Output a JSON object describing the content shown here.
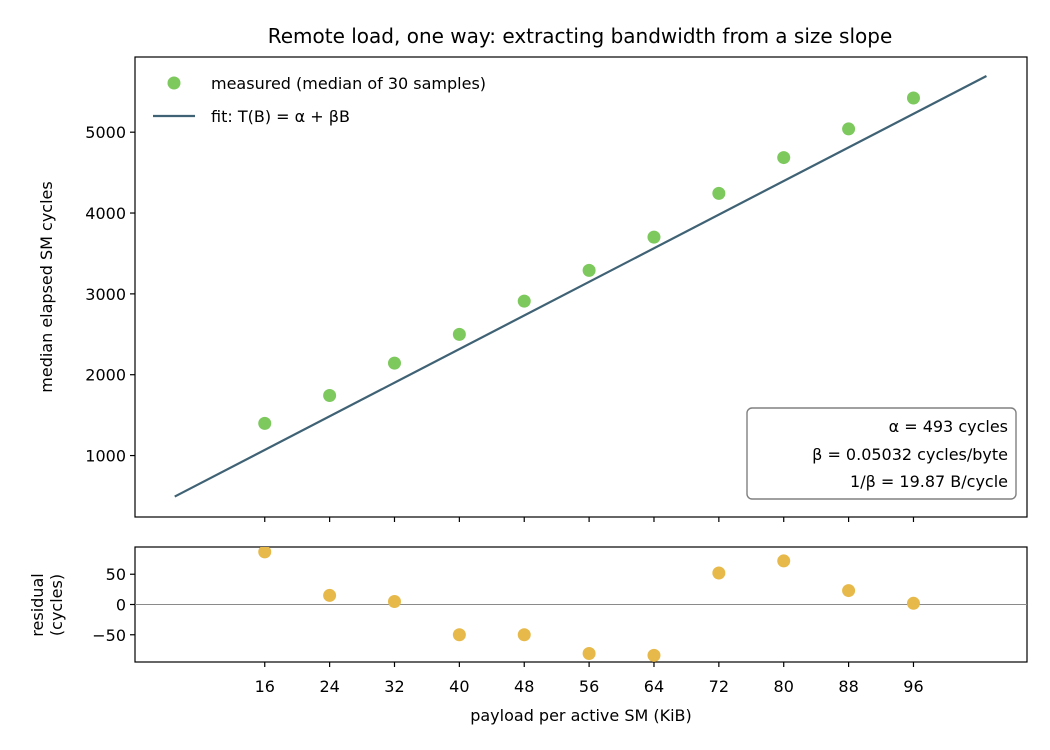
{
  "chart_data": [
    {
      "type": "scatter",
      "title": "Remote load, one way: extracting bandwidth from a size slope",
      "xlabel": "",
      "ylabel": "median elapsed SM cycles",
      "ylim": [
        240,
        5930
      ],
      "yticks": [
        1000,
        2000,
        3000,
        4000,
        5000
      ],
      "xlim": [
        0,
        110
      ],
      "grid": false,
      "legend_position": "top-left",
      "series": [
        {
          "name": "measured (median of 30 samples)",
          "kind": "points",
          "color": "#7dc95e",
          "x": [
            16,
            24,
            32,
            40,
            48,
            56,
            64,
            72,
            80,
            88,
            96
          ],
          "y": [
            1398,
            1743,
            2143,
            2499,
            2910,
            3291,
            3702,
            4243,
            4686,
            5041,
            5423
          ]
        },
        {
          "name": "fit: T(B) = α + βB",
          "kind": "line",
          "color": "#3f6275",
          "x": [
            4.9,
            105
          ],
          "y": [
            493,
            5695
          ]
        }
      ],
      "annotations": [
        "α = 493 cycles",
        "β = 0.05032 cycles/byte",
        "1/β = 19.87 B/cycle"
      ]
    },
    {
      "type": "scatter",
      "title": "",
      "xlabel": "payload per active SM (KiB)",
      "ylabel": "residual\n(cycles)",
      "ylabel_lines": [
        "residual",
        "(cycles)"
      ],
      "xlim": [
        0,
        110
      ],
      "ylim": [
        -95,
        95
      ],
      "xticks": [
        16,
        24,
        32,
        40,
        48,
        56,
        64,
        72,
        80,
        88,
        96
      ],
      "yticks": [
        50,
        0,
        -50
      ],
      "ytick_labels": [
        "50",
        "0",
        "−50"
      ],
      "reference_line_y": 0,
      "grid": false,
      "series": [
        {
          "kind": "points",
          "color": "#e6b94a",
          "x": [
            16,
            24,
            32,
            40,
            48,
            56,
            64,
            72,
            80,
            88,
            96
          ],
          "y": [
            87,
            15,
            5,
            -50,
            -50,
            -81,
            -84,
            52,
            72,
            23,
            2
          ]
        }
      ]
    }
  ]
}
